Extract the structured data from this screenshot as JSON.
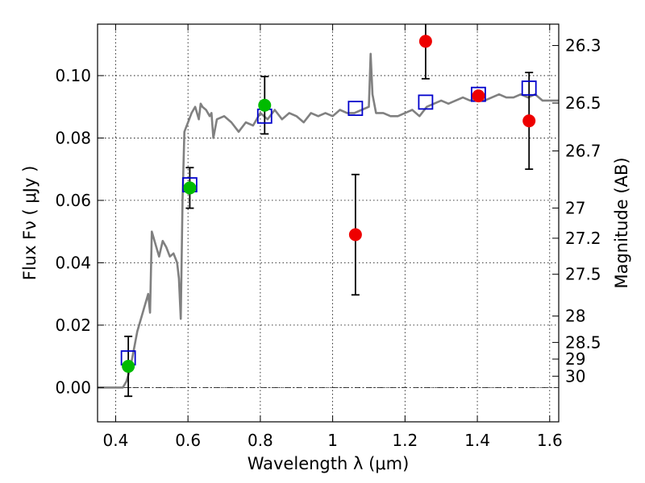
{
  "chart_data": {
    "type": "scatter",
    "title": "",
    "xlabel": "Wavelength  λ (μm)",
    "ylabel": "Flux  Fν  ( μJy )",
    "y2label": "Magnitude (AB)",
    "xlim": [
      0.35,
      1.625
    ],
    "ylim": [
      -0.011,
      0.1165
    ],
    "grid": true,
    "legend": "none",
    "xticks": [
      {
        "v": 0.4,
        "label": "0.4"
      },
      {
        "v": 0.6,
        "label": "0.6"
      },
      {
        "v": 0.8,
        "label": "0.8"
      },
      {
        "v": 1.0,
        "label": "1"
      },
      {
        "v": 1.2,
        "label": "1.2"
      },
      {
        "v": 1.4,
        "label": "1.4"
      },
      {
        "v": 1.6,
        "label": "1.6"
      }
    ],
    "yticks": [
      {
        "v": 0.0,
        "label": "0.00"
      },
      {
        "v": 0.02,
        "label": "0.02"
      },
      {
        "v": 0.04,
        "label": "0.04"
      },
      {
        "v": 0.06,
        "label": "0.06"
      },
      {
        "v": 0.08,
        "label": "0.08"
      },
      {
        "v": 0.1,
        "label": "0.10"
      }
    ],
    "mag_ticks": [
      {
        "v": 26.3,
        "label": "26.3"
      },
      {
        "v": 26.5,
        "label": "26.5"
      },
      {
        "v": 26.7,
        "label": "26.7"
      },
      {
        "v": 27.0,
        "label": "27"
      },
      {
        "v": 27.2,
        "label": "27.2"
      },
      {
        "v": 27.5,
        "label": "27.5"
      },
      {
        "v": 28.0,
        "label": "28"
      },
      {
        "v": 28.5,
        "label": "28.5"
      },
      {
        "v": 29.0,
        "label": "29"
      },
      {
        "v": 30.0,
        "label": "30"
      }
    ],
    "colors": {
      "model": "#808080",
      "model_box": "#0000cc",
      "detection": "#00bb00",
      "measurement": "#ee0000",
      "error_bar": "#000000"
    },
    "model_spectrum": {
      "x": [
        0.35,
        0.41,
        0.42,
        0.43,
        0.44,
        0.45,
        0.46,
        0.47,
        0.48,
        0.49,
        0.495,
        0.5,
        0.51,
        0.52,
        0.53,
        0.54,
        0.55,
        0.56,
        0.57,
        0.575,
        0.58,
        0.585,
        0.59,
        0.6,
        0.61,
        0.62,
        0.63,
        0.635,
        0.64,
        0.65,
        0.66,
        0.665,
        0.67,
        0.68,
        0.7,
        0.72,
        0.74,
        0.76,
        0.78,
        0.8,
        0.82,
        0.84,
        0.86,
        0.88,
        0.9,
        0.92,
        0.94,
        0.96,
        0.98,
        1.0,
        1.02,
        1.04,
        1.06,
        1.08,
        1.1,
        1.105,
        1.11,
        1.12,
        1.14,
        1.16,
        1.18,
        1.2,
        1.22,
        1.24,
        1.26,
        1.28,
        1.3,
        1.32,
        1.34,
        1.36,
        1.38,
        1.4,
        1.42,
        1.44,
        1.46,
        1.48,
        1.5,
        1.52,
        1.54,
        1.56,
        1.58,
        1.6,
        1.625
      ],
      "y": [
        0.0,
        0.0,
        0.0,
        0.002,
        0.006,
        0.012,
        0.018,
        0.022,
        0.026,
        0.03,
        0.024,
        0.05,
        0.046,
        0.042,
        0.047,
        0.045,
        0.042,
        0.043,
        0.04,
        0.035,
        0.022,
        0.06,
        0.082,
        0.085,
        0.088,
        0.09,
        0.086,
        0.091,
        0.09,
        0.089,
        0.087,
        0.088,
        0.08,
        0.086,
        0.087,
        0.085,
        0.082,
        0.085,
        0.084,
        0.088,
        0.086,
        0.089,
        0.086,
        0.088,
        0.087,
        0.085,
        0.088,
        0.087,
        0.088,
        0.087,
        0.089,
        0.088,
        0.088,
        0.089,
        0.09,
        0.107,
        0.094,
        0.088,
        0.088,
        0.087,
        0.087,
        0.088,
        0.089,
        0.087,
        0.09,
        0.091,
        0.092,
        0.091,
        0.092,
        0.093,
        0.092,
        0.093,
        0.092,
        0.093,
        0.094,
        0.093,
        0.093,
        0.094,
        0.093,
        0.094,
        0.092,
        0.092,
        0.092
      ]
    },
    "model_boxes": {
      "x": [
        0.435,
        0.605,
        0.812,
        1.063,
        1.257,
        1.403,
        1.543
      ],
      "y": [
        0.0095,
        0.065,
        0.087,
        0.0895,
        0.0915,
        0.094,
        0.096
      ]
    },
    "detections": {
      "x": [
        0.435,
        0.605,
        0.812
      ],
      "y": [
        0.0068,
        0.064,
        0.0905
      ],
      "yerr": [
        0.0096,
        0.0065,
        0.0092
      ]
    },
    "measurements": {
      "x": [
        1.063,
        1.257,
        1.403,
        1.543
      ],
      "y": [
        0.049,
        0.111,
        0.0935,
        0.0855
      ],
      "yerr": [
        0.0193,
        0.012,
        0.0,
        0.0155
      ]
    }
  }
}
